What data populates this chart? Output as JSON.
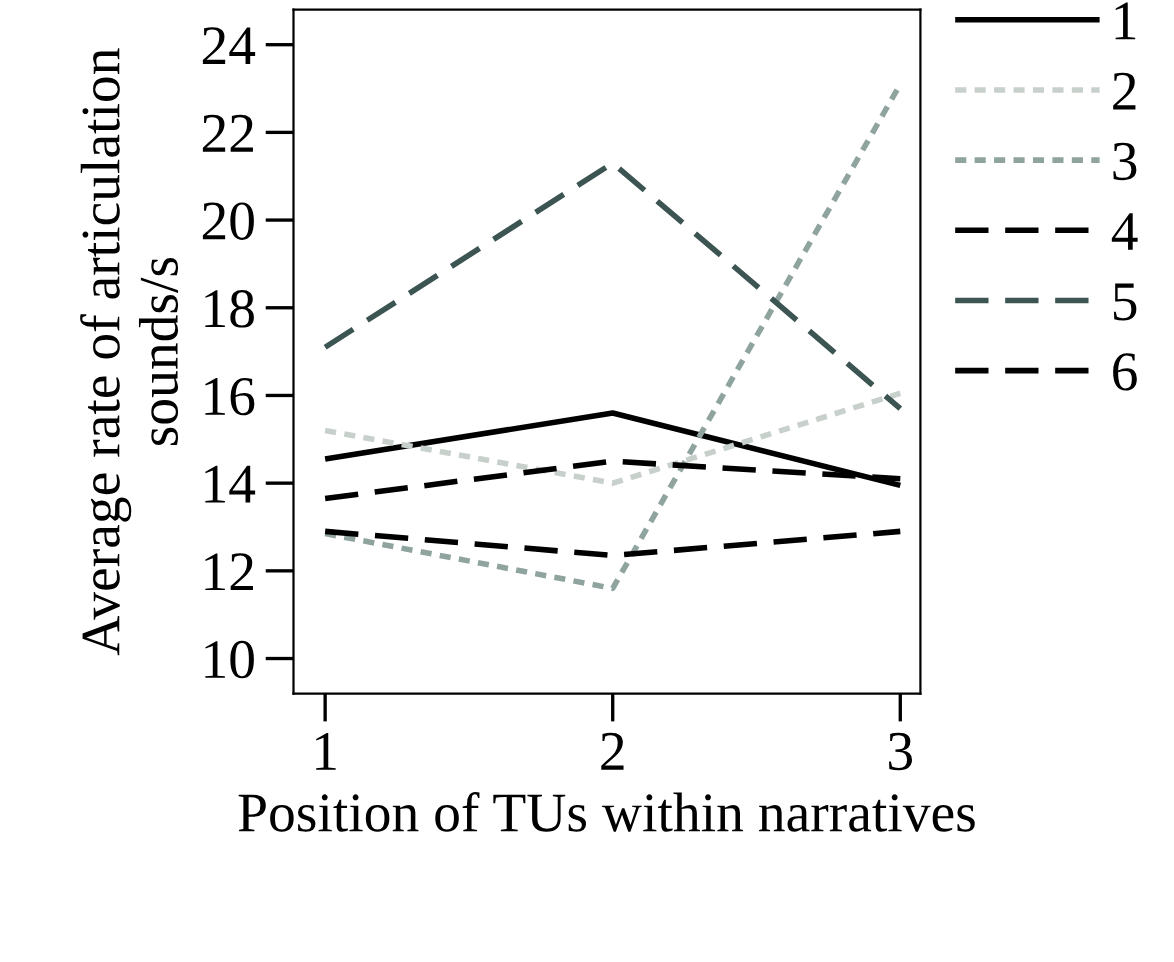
{
  "chart_data": {
    "type": "line",
    "xlabel": "Position of TUs within narratives",
    "ylabel": "Average rate of articulation sounds/s",
    "x": [
      1,
      2,
      3
    ],
    "xlim": [
      0.89,
      3.07
    ],
    "xticks": [
      1,
      2,
      3
    ],
    "ylim": [
      9.2,
      24.8
    ],
    "yticks": [
      10,
      12,
      14,
      16,
      18,
      20,
      22,
      24
    ],
    "grid": false,
    "legend": "right",
    "marker": "none",
    "series": [
      {
        "name": "1",
        "color": "#000000",
        "line_style": "solid",
        "values": [
          14.55,
          15.6,
          13.95
        ]
      },
      {
        "name": "2",
        "color": "#c8d0cc",
        "line_style": "dotted",
        "values": [
          15.2,
          14.0,
          16.05
        ]
      },
      {
        "name": "3",
        "color": "#8fa39f",
        "line_style": "dotted",
        "values": [
          12.85,
          11.6,
          23.1
        ]
      },
      {
        "name": "4",
        "color": "#000000",
        "line_style": "dashed",
        "values": [
          12.9,
          12.35,
          12.9
        ]
      },
      {
        "name": "5",
        "color": "#3c5452",
        "line_style": "dashed",
        "values": [
          17.1,
          21.3,
          15.7
        ]
      },
      {
        "name": "6",
        "color": "#000000",
        "line_style": "dashed",
        "values": [
          13.65,
          14.5,
          14.1
        ]
      }
    ]
  }
}
